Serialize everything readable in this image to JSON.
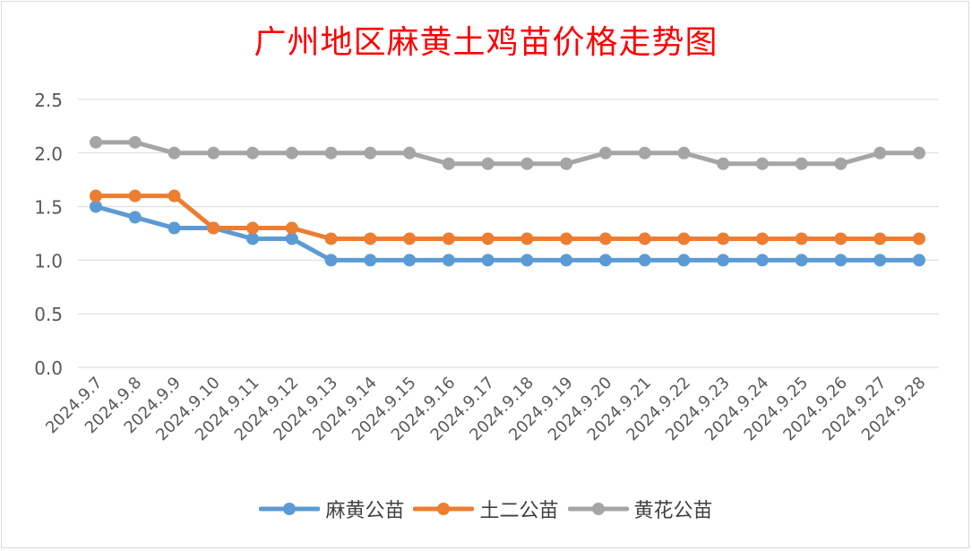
{
  "chart_data": {
    "type": "line",
    "title": "广州地区麻黄土鸡苗价格走势图",
    "categories": [
      "2024.9.7",
      "2024.9.8",
      "2024.9.9",
      "2024.9.10",
      "2024.9.11",
      "2024.9.12",
      "2024.9.13",
      "2024.9.14",
      "2024.9.15",
      "2024.9.16",
      "2024.9.17",
      "2024.9.18",
      "2024.9.19",
      "2024.9.20",
      "2024.9.21",
      "2024.9.22",
      "2024.9.23",
      "2024.9.24",
      "2024.9.25",
      "2024.9.26",
      "2024.9.27",
      "2024.9.28"
    ],
    "series": [
      {
        "name": "麻黄公苗",
        "color": "#5b9bd5",
        "values": [
          1.5,
          1.4,
          1.3,
          1.3,
          1.2,
          1.2,
          1.0,
          1.0,
          1.0,
          1.0,
          1.0,
          1.0,
          1.0,
          1.0,
          1.0,
          1.0,
          1.0,
          1.0,
          1.0,
          1.0,
          1.0,
          1.0
        ]
      },
      {
        "name": "土二公苗",
        "color": "#ed7d31",
        "values": [
          1.6,
          1.6,
          1.6,
          1.3,
          1.3,
          1.3,
          1.2,
          1.2,
          1.2,
          1.2,
          1.2,
          1.2,
          1.2,
          1.2,
          1.2,
          1.2,
          1.2,
          1.2,
          1.2,
          1.2,
          1.2,
          1.2
        ]
      },
      {
        "name": "黄花公苗",
        "color": "#a5a5a5",
        "values": [
          2.1,
          2.1,
          2.0,
          2.0,
          2.0,
          2.0,
          2.0,
          2.0,
          2.0,
          1.9,
          1.9,
          1.9,
          1.9,
          2.0,
          2.0,
          2.0,
          1.9,
          1.9,
          1.9,
          1.9,
          2.0,
          2.0
        ]
      }
    ],
    "yticks": [
      "0.0",
      "0.5",
      "1.0",
      "1.5",
      "2.0",
      "2.5"
    ],
    "ylim": [
      0,
      2.5
    ],
    "grid": true,
    "legend_position": "bottom",
    "title_color": "#ff0000"
  }
}
